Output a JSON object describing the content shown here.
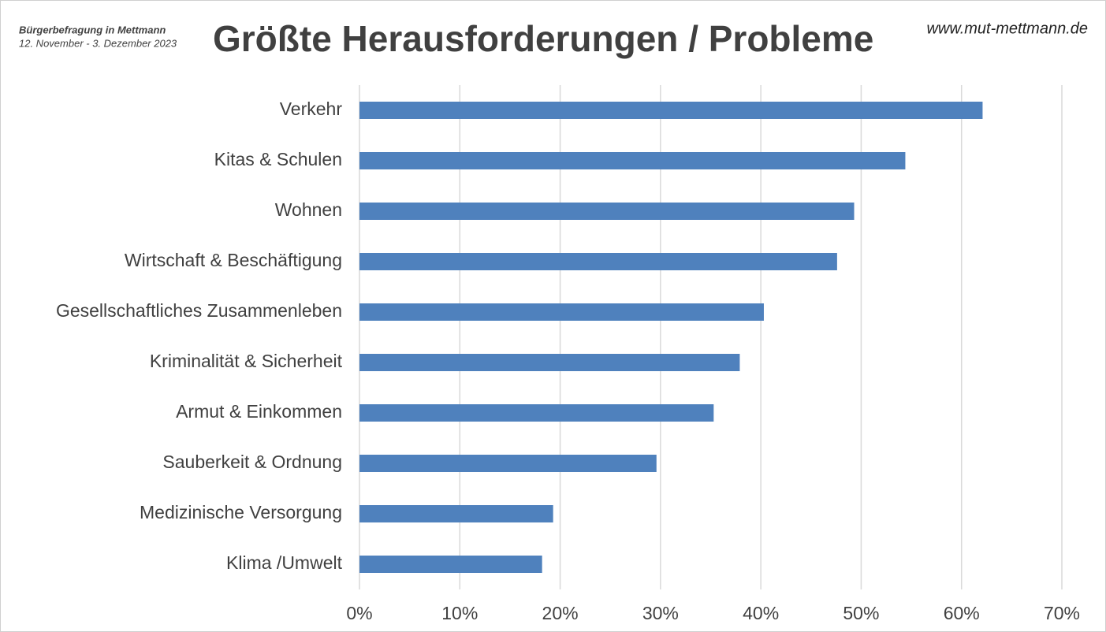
{
  "chart_data": {
    "type": "bar",
    "orientation": "horizontal",
    "title": "Größte Herausforderungen / Probleme",
    "subtitle": [
      "Bürgerbefragung in Mettmann",
      "12. November - 3. Dezember 2023"
    ],
    "source": "www.mut-mettmann.de",
    "categories": [
      "Verkehr",
      "Kitas & Schulen",
      "Wohnen",
      "Wirtschaft & Beschäftigung",
      "Gesellschaftliches Zusammenleben",
      "Kriminalität & Sicherheit",
      "Armut & Einkommen",
      "Sauberkeit & Ordnung",
      "Medizinische Versorgung",
      "Klima /Umwelt"
    ],
    "values": [
      62.1,
      54.4,
      49.3,
      47.6,
      40.3,
      37.9,
      35.3,
      29.6,
      19.3,
      18.2
    ],
    "color": "#4f81bd",
    "xlim": [
      0,
      70
    ],
    "xticks": [
      {
        "value": 0,
        "label": "0%"
      },
      {
        "value": 10,
        "label": "10%"
      },
      {
        "value": 20,
        "label": "20%"
      },
      {
        "value": 30,
        "label": "30%"
      },
      {
        "value": 40,
        "label": "40%"
      },
      {
        "value": 50,
        "label": "50%"
      },
      {
        "value": 60,
        "label": "60%"
      },
      {
        "value": 70,
        "label": "70%"
      }
    ],
    "grid": true
  }
}
